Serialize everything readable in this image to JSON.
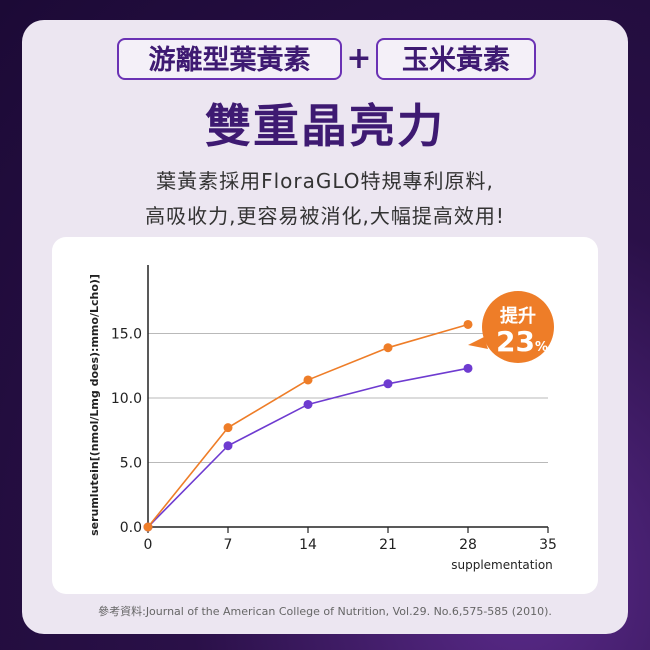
{
  "header": {
    "pill1": "游離型葉黃素",
    "plus": "+",
    "pill2": "玉米黃素",
    "headline": "雙重晶亮力",
    "line1": "葉黃素採用FloraGLO特規專利原料,",
    "line2": "高吸收力,更容易被消化,大幅提高效用!"
  },
  "badge": {
    "text": "提升",
    "number": "23",
    "unit": "%"
  },
  "reference": "參考資料:Journal of the American College of Nutrition, Vol.29. No.6,575-585 (2010).",
  "colors": {
    "orange": "#ee7d28",
    "purple": "#6e3bd0",
    "accent": "#3e1a72"
  },
  "chart_data": {
    "type": "line",
    "xlabel": "supplementation",
    "ylabel": "serumlutein[(nmol/Lmg does):mmo/Lcho)]",
    "x": [
      0,
      7,
      14,
      21,
      28
    ],
    "xticks": [
      "0",
      "7",
      "14",
      "21",
      "28",
      "35"
    ],
    "yticks": [
      "0.0",
      "5.0",
      "10.0",
      "15.0"
    ],
    "xlim": [
      0,
      35
    ],
    "ylim": [
      0,
      20
    ],
    "grid": true,
    "series": [
      {
        "color": "#ee7d28",
        "values": [
          0,
          7.7,
          11.4,
          13.9,
          15.7
        ]
      },
      {
        "color": "#6e3bd0",
        "values": [
          0,
          6.3,
          9.5,
          11.1,
          12.3
        ]
      }
    ]
  }
}
